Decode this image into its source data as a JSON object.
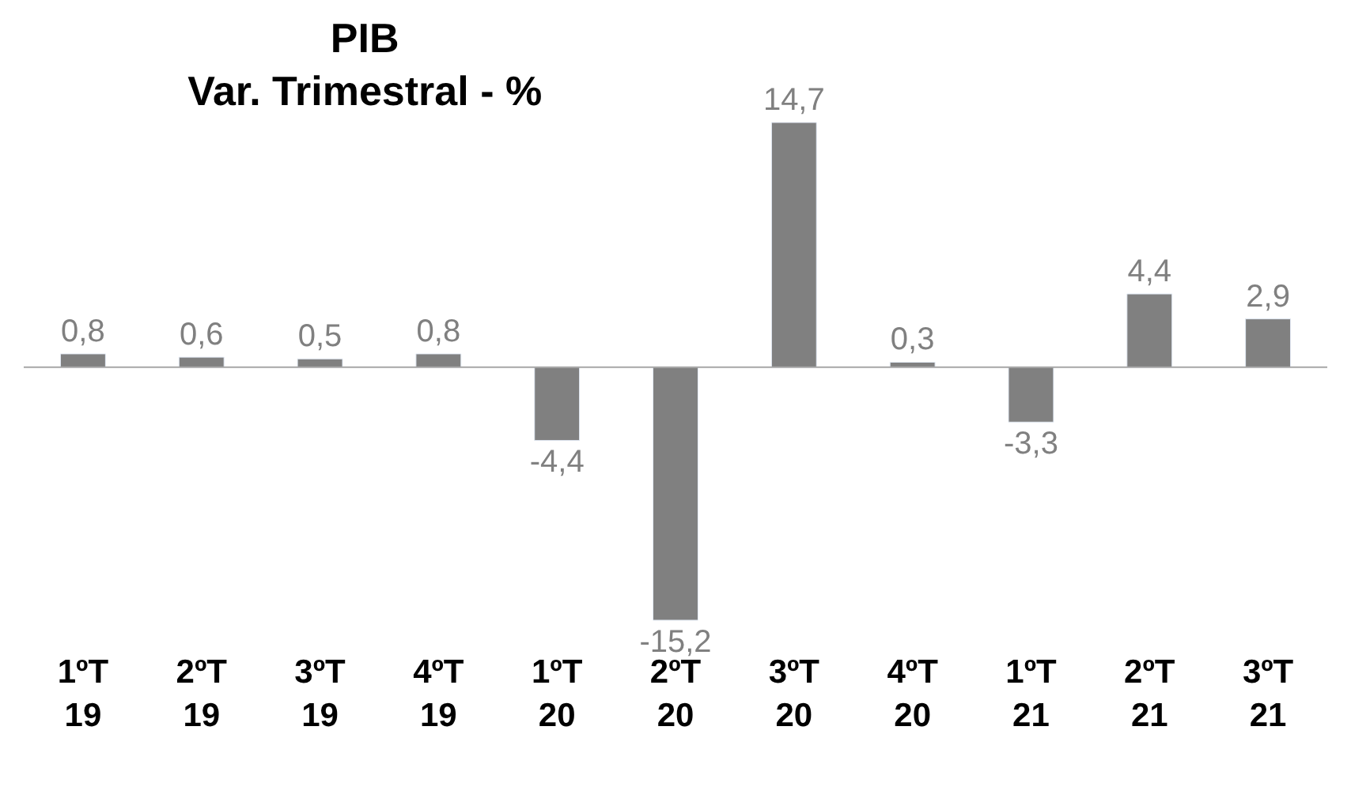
{
  "chart_data": {
    "type": "bar",
    "title": "PIB\nVar. Trimestral - %",
    "categories": [
      "1ºT\n19",
      "2ºT\n19",
      "3ºT\n19",
      "4ºT\n19",
      "1ºT\n20",
      "2ºT\n20",
      "3ºT\n20",
      "4ºT\n20",
      "1ºT\n21",
      "2ºT\n21",
      "3ºT\n21"
    ],
    "values": [
      0.8,
      0.6,
      0.5,
      0.8,
      -4.4,
      -15.2,
      14.7,
      0.3,
      -3.3,
      4.4,
      2.9
    ],
    "value_labels": [
      "0,8",
      "0,6",
      "0,5",
      "0,8",
      "-4,4",
      "-15,2",
      "14,7",
      "0,3",
      "-3,3",
      "4,4",
      "2,9"
    ],
    "color": "#808080"
  }
}
